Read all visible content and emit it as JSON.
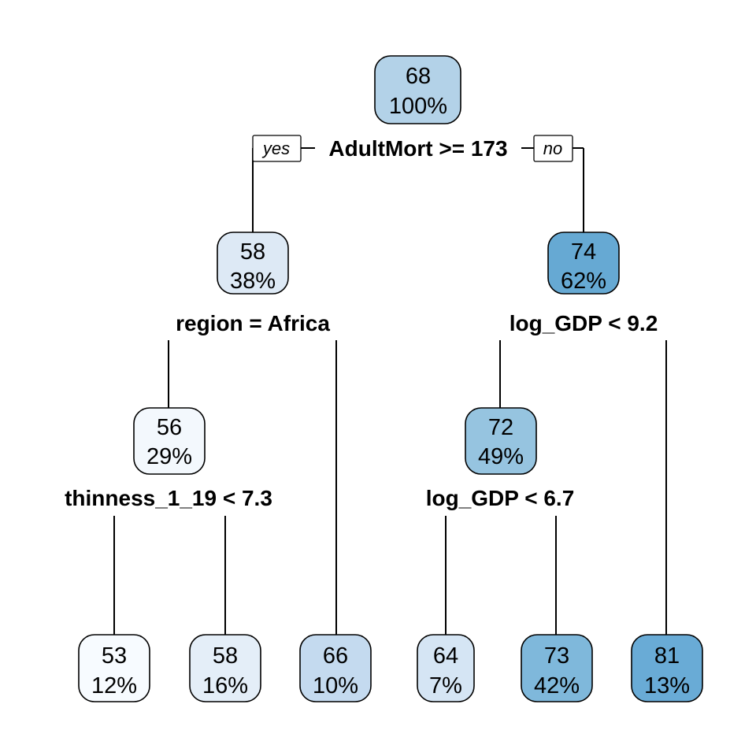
{
  "nodes": {
    "root": {
      "value": "68",
      "pct": "100%",
      "color": "#b3d2e8"
    },
    "n2": {
      "value": "58",
      "pct": "38%",
      "color": "#dde9f5"
    },
    "n3": {
      "value": "74",
      "pct": "62%",
      "color": "#66a9d3"
    },
    "n4": {
      "value": "56",
      "pct": "29%",
      "color": "#f3f8fd"
    },
    "n6": {
      "value": "72",
      "pct": "49%",
      "color": "#96c4e0"
    },
    "l1": {
      "value": "53",
      "pct": "12%",
      "color": "#f7fbff"
    },
    "l2": {
      "value": "58",
      "pct": "16%",
      "color": "#e4eef8"
    },
    "l3": {
      "value": "66",
      "pct": "10%",
      "color": "#c4daef"
    },
    "l4": {
      "value": "64",
      "pct": "7%",
      "color": "#d5e5f4"
    },
    "l5": {
      "value": "73",
      "pct": "42%",
      "color": "#7fb8db"
    },
    "l6": {
      "value": "81",
      "pct": "13%",
      "color": "#69abd6"
    }
  },
  "splits": {
    "root": "AdultMort >= 173",
    "n2": "region = Africa",
    "n3": "log_GDP < 9.2",
    "n4": "thinness_1_19 < 7.3",
    "n6": "log_GDP < 6.7"
  },
  "branch_tags": {
    "yes": "yes",
    "no": "no"
  }
}
